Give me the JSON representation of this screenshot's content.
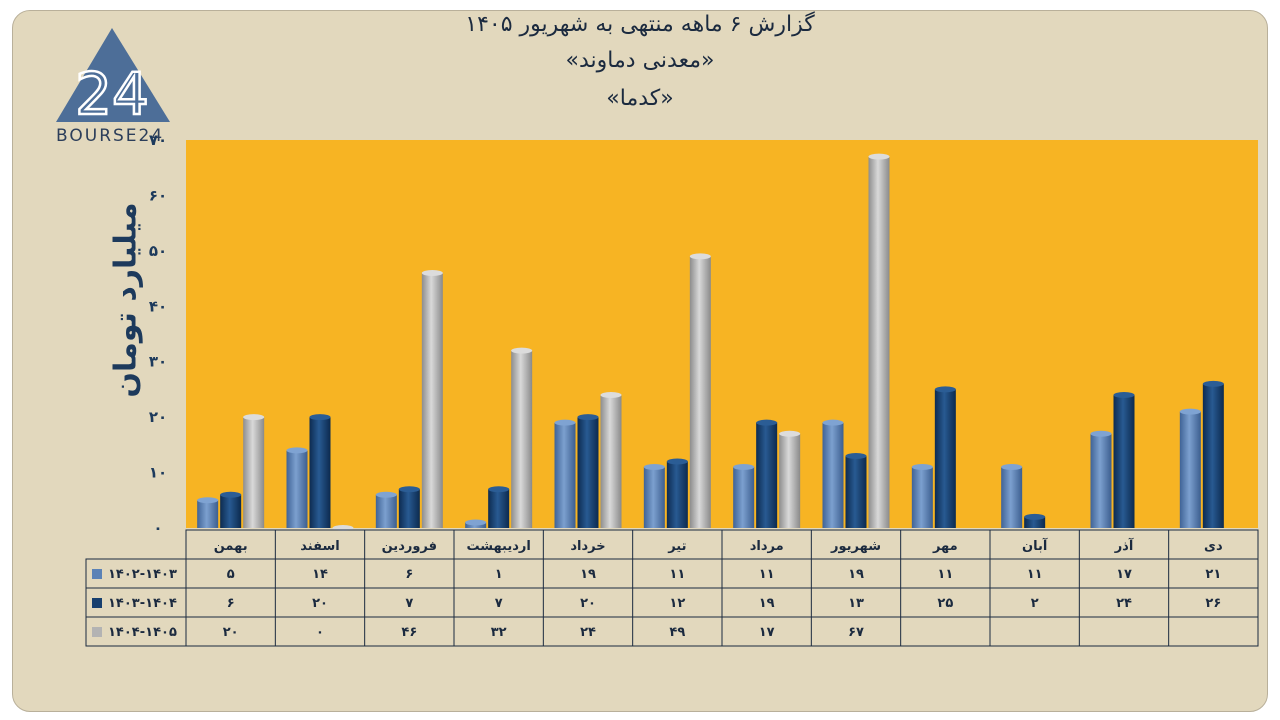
{
  "header": {
    "title_line1": "گزارش ۶ ماهه منتهی به شهریور ۱۴۰۵",
    "title_line2": "«معدنی دماوند»",
    "title_line3": "«کدما»"
  },
  "logo": {
    "mark": "24",
    "text": "BOURSE24"
  },
  "colors": {
    "background": "#e2d8bd",
    "plot_area": "#f7b423",
    "series_1402_1403": "#5b82b6",
    "series_1403_1404": "#173f6e",
    "series_1404_1405": "#b3b3b3",
    "text": "#1d3a5c"
  },
  "chart_data": {
    "type": "bar",
    "ylabel": "میلیارد تومان",
    "ylim": [
      0,
      70
    ],
    "yticks": [
      0,
      10,
      20,
      30,
      40,
      50,
      60,
      70
    ],
    "ytick_labels": [
      "۰",
      "۱۰",
      "۲۰",
      "۳۰",
      "۴۰",
      "۵۰",
      "۶۰",
      "۷۰"
    ],
    "categories": [
      "بهمن",
      "اسفند",
      "فروردین",
      "اردیبهشت",
      "خرداد",
      "تیر",
      "مرداد",
      "شهریور",
      "مهر",
      "آبان",
      "آذر",
      "دی"
    ],
    "series": [
      {
        "name": "۱۴۰۲-۱۴۰۳",
        "values": [
          5,
          14,
          6,
          1,
          19,
          11,
          11,
          19,
          11,
          11,
          17,
          21
        ],
        "labels": [
          "۵",
          "۱۴",
          "۶",
          "۱",
          "۱۹",
          "۱۱",
          "۱۱",
          "۱۹",
          "۱۱",
          "۱۱",
          "۱۷",
          "۲۱"
        ]
      },
      {
        "name": "۱۴۰۳-۱۴۰۴",
        "values": [
          6,
          20,
          7,
          7,
          20,
          12,
          19,
          13,
          25,
          2,
          24,
          26
        ],
        "labels": [
          "۶",
          "۲۰",
          "۷",
          "۷",
          "۲۰",
          "۱۲",
          "۱۹",
          "۱۳",
          "۲۵",
          "۲",
          "۲۴",
          "۲۶"
        ]
      },
      {
        "name": "۱۴۰۴-۱۴۰۵",
        "values": [
          20,
          0,
          46,
          32,
          24,
          49,
          17,
          67,
          null,
          null,
          null,
          null
        ],
        "labels": [
          "۲۰",
          "۰",
          "۴۶",
          "۳۲",
          "۲۴",
          "۴۹",
          "۱۷",
          "۶۷",
          "",
          "",
          "",
          ""
        ]
      }
    ],
    "grid": false,
    "legend": "table-left"
  }
}
